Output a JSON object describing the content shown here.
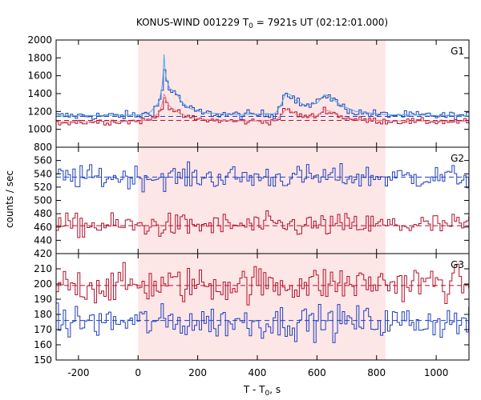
{
  "chart_data": {
    "type": "line",
    "title": "KONUS-WIND 001229 T",
    "title_sub": "0",
    "title_rest": " = 7921s UT (02:12:01.000)",
    "xlabel": "T - T",
    "xlabel_sub": "0",
    "xlabel_rest": ", s",
    "ylabel": "counts / sec",
    "xlim": [
      -275,
      1110
    ],
    "x_ticks": [
      -200,
      0,
      200,
      400,
      600,
      800,
      1000
    ],
    "highlight_interval": [
      0,
      830
    ],
    "colors": {
      "shade": "#fde6e6",
      "blue": "#1f3fbf",
      "lightblue": "#4aaee0",
      "red": "#b3102a",
      "pink": "#f08090"
    },
    "panels": [
      {
        "label": "G1",
        "ylim": [
          800,
          2000
        ],
        "y_ticks": [
          800,
          1000,
          1200,
          1400,
          1600,
          1800,
          2000
        ],
        "tick_labels": [
          "800",
          "1000",
          "1200",
          "1400",
          "1600",
          "1800",
          "2000"
        ],
        "series": [
          {
            "color": "blue",
            "style": "step",
            "background": 1145,
            "noise": 25,
            "step": 8,
            "profile": [
              [
                -275,
                1150
              ],
              [
                0,
                1155
              ],
              [
                40,
                1180
              ],
              [
                70,
                1280
              ],
              [
                82,
                1450
              ],
              [
                88,
                1680
              ],
              [
                95,
                1560
              ],
              [
                105,
                1450
              ],
              [
                125,
                1420
              ],
              [
                145,
                1300
              ],
              [
                170,
                1230
              ],
              [
                220,
                1180
              ],
              [
                330,
                1160
              ],
              [
                460,
                1170
              ],
              [
                480,
                1290
              ],
              [
                495,
                1420
              ],
              [
                510,
                1400
              ],
              [
                530,
                1320
              ],
              [
                560,
                1260
              ],
              [
                600,
                1280
              ],
              [
                625,
                1400
              ],
              [
                645,
                1360
              ],
              [
                680,
                1260
              ],
              [
                730,
                1190
              ],
              [
                830,
                1160
              ],
              [
                1110,
                1150
              ]
            ]
          },
          {
            "color": "lightblue",
            "style": "line",
            "background": 1150,
            "noise": 0,
            "step": 4,
            "profile": [
              [
                -275,
                1150
              ],
              [
                0,
                1160
              ],
              [
                40,
                1190
              ],
              [
                70,
                1300
              ],
              [
                82,
                1500
              ],
              [
                87,
                1840
              ],
              [
                92,
                1600
              ],
              [
                105,
                1460
              ],
              [
                125,
                1420
              ],
              [
                145,
                1310
              ],
              [
                170,
                1240
              ],
              [
                220,
                1185
              ],
              [
                330,
                1165
              ],
              [
                460,
                1175
              ],
              [
                480,
                1280
              ],
              [
                495,
                1400
              ],
              [
                510,
                1390
              ],
              [
                530,
                1320
              ],
              [
                560,
                1270
              ],
              [
                600,
                1290
              ],
              [
                625,
                1390
              ],
              [
                645,
                1360
              ],
              [
                680,
                1270
              ],
              [
                730,
                1200
              ],
              [
                830,
                1165
              ],
              [
                1110,
                1150
              ]
            ]
          },
          {
            "color": "red",
            "style": "step",
            "background": 1085,
            "noise": 18,
            "step": 8,
            "profile": [
              [
                -275,
                1080
              ],
              [
                0,
                1090
              ],
              [
                40,
                1105
              ],
              [
                70,
                1160
              ],
              [
                82,
                1280
              ],
              [
                88,
                1380
              ],
              [
                95,
                1300
              ],
              [
                105,
                1250
              ],
              [
                125,
                1200
              ],
              [
                145,
                1160
              ],
              [
                170,
                1130
              ],
              [
                220,
                1105
              ],
              [
                330,
                1090
              ],
              [
                460,
                1090
              ],
              [
                480,
                1160
              ],
              [
                495,
                1220
              ],
              [
                510,
                1210
              ],
              [
                530,
                1170
              ],
              [
                560,
                1140
              ],
              [
                600,
                1150
              ],
              [
                625,
                1220
              ],
              [
                645,
                1200
              ],
              [
                680,
                1140
              ],
              [
                730,
                1110
              ],
              [
                830,
                1090
              ],
              [
                1110,
                1085
              ]
            ]
          },
          {
            "color": "pink",
            "style": "line",
            "background": 1090,
            "noise": 0,
            "step": 4,
            "profile": [
              [
                -275,
                1085
              ],
              [
                0,
                1090
              ],
              [
                40,
                1110
              ],
              [
                70,
                1180
              ],
              [
                82,
                1300
              ],
              [
                88,
                1410
              ],
              [
                95,
                1320
              ],
              [
                105,
                1260
              ],
              [
                125,
                1210
              ],
              [
                145,
                1170
              ],
              [
                170,
                1140
              ],
              [
                220,
                1110
              ],
              [
                330,
                1095
              ],
              [
                460,
                1095
              ],
              [
                480,
                1160
              ],
              [
                495,
                1220
              ],
              [
                510,
                1210
              ],
              [
                530,
                1170
              ],
              [
                560,
                1140
              ],
              [
                600,
                1150
              ],
              [
                625,
                1220
              ],
              [
                645,
                1200
              ],
              [
                680,
                1140
              ],
              [
                730,
                1110
              ],
              [
                830,
                1095
              ],
              [
                1110,
                1090
              ]
            ]
          }
        ],
        "dashed": [
          {
            "color": "blue",
            "value": 1145
          },
          {
            "color": "red",
            "value": 1100
          }
        ]
      },
      {
        "label": "G2",
        "ylim": [
          420,
          580
        ],
        "y_ticks": [
          420,
          440,
          460,
          480,
          500,
          520,
          540,
          560
        ],
        "tick_labels": [
          "420",
          "440",
          "460",
          "480",
          "500",
          "520",
          "540",
          "560"
        ],
        "series": [
          {
            "color": "blue",
            "style": "step",
            "background": 535,
            "noise": 9,
            "step": 8,
            "profile": [
              [
                -275,
                535
              ],
              [
                1110,
                535
              ]
            ]
          },
          {
            "color": "red",
            "style": "step",
            "background": 462,
            "noise": 9,
            "step": 8,
            "profile": [
              [
                -275,
                462
              ],
              [
                1110,
                463
              ]
            ]
          }
        ],
        "dashed": [
          {
            "color": "blue",
            "value": 535
          },
          {
            "color": "red",
            "value": 462
          }
        ]
      },
      {
        "label": "G3",
        "ylim": [
          150,
          220
        ],
        "y_ticks": [
          150,
          160,
          170,
          180,
          190,
          200,
          210
        ],
        "tick_labels": [
          "150",
          "160",
          "170",
          "180",
          "190",
          "200",
          "210"
        ],
        "series": [
          {
            "color": "red",
            "style": "step",
            "background": 199,
            "noise": 6,
            "step": 8,
            "profile": [
              [
                -275,
                199
              ],
              [
                1110,
                201
              ]
            ]
          },
          {
            "color": "blue",
            "style": "step",
            "background": 175,
            "noise": 5.5,
            "step": 8,
            "profile": [
              [
                -275,
                175
              ],
              [
                1110,
                175
              ]
            ]
          }
        ],
        "dashed": [
          {
            "color": "red",
            "value": 199
          },
          {
            "color": "blue",
            "value": 176
          }
        ]
      }
    ]
  }
}
